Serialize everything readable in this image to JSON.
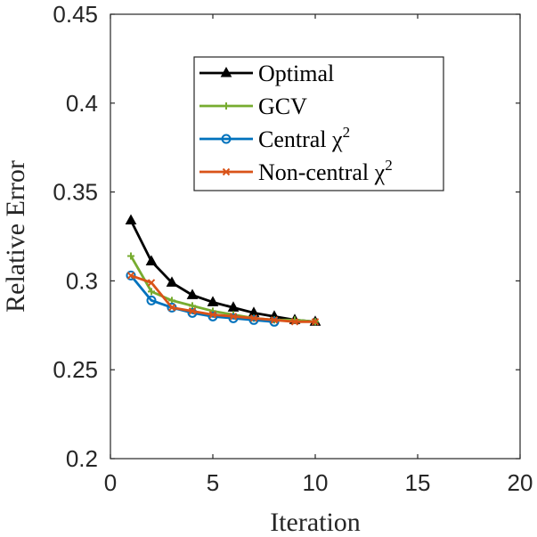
{
  "chart_data": {
    "type": "line",
    "xlabel": "Iteration",
    "ylabel": "Relative Error",
    "xlim": [
      0,
      20
    ],
    "ylim": [
      0.2,
      0.45
    ],
    "xticks": [
      0,
      5,
      10,
      15,
      20
    ],
    "xtick_labels": [
      "0",
      "5",
      "10",
      "15",
      "20"
    ],
    "yticks": [
      0.2,
      0.25,
      0.3,
      0.35,
      0.4,
      0.45
    ],
    "ytick_labels": [
      "0.2",
      "0.25",
      "0.3",
      "0.35",
      "0.4",
      "0.45"
    ],
    "grid": false,
    "legend_position": "top-center",
    "series": [
      {
        "name": "Optimal",
        "legend_label": "Optimal",
        "legend_sup": "",
        "color": "#000000",
        "marker": "triangle",
        "x": [
          1,
          2,
          3,
          4,
          5,
          6,
          7,
          8,
          9,
          10
        ],
        "y": [
          0.334,
          0.311,
          0.299,
          0.292,
          0.288,
          0.285,
          0.282,
          0.28,
          0.278,
          0.277
        ]
      },
      {
        "name": "GCV",
        "legend_label": "GCV",
        "legend_sup": "",
        "color": "#77ac30",
        "marker": "plus",
        "x": [
          1,
          2,
          3,
          4,
          5,
          6,
          7,
          8,
          9,
          10
        ],
        "y": [
          0.314,
          0.294,
          0.289,
          0.286,
          0.283,
          0.281,
          0.279,
          0.278,
          0.278,
          0.277
        ]
      },
      {
        "name": "Central χ2",
        "legend_label": "Central χ",
        "legend_sup": "2",
        "color": "#0072bd",
        "marker": "circle",
        "x": [
          1,
          2,
          3,
          4,
          5,
          6,
          7,
          8
        ],
        "y": [
          0.303,
          0.289,
          0.285,
          0.282,
          0.28,
          0.279,
          0.278,
          0.277
        ]
      },
      {
        "name": "Non-central χ2",
        "legend_label": "Non-central χ",
        "legend_sup": "2",
        "color": "#d95319",
        "marker": "x",
        "x": [
          1,
          2,
          3,
          4,
          5,
          6,
          7,
          8,
          9,
          10
        ],
        "y": [
          0.303,
          0.299,
          0.285,
          0.283,
          0.281,
          0.28,
          0.279,
          0.278,
          0.277,
          0.277
        ]
      }
    ]
  }
}
